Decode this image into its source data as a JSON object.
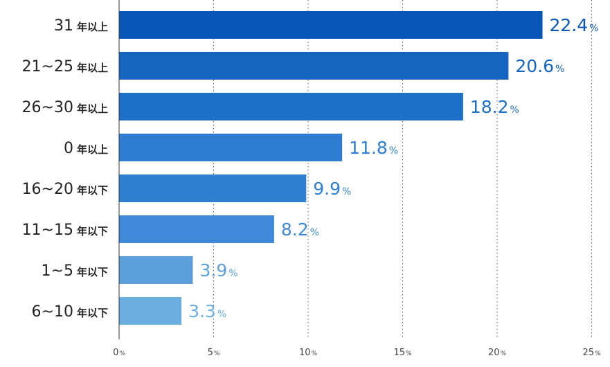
{
  "chart_data": {
    "type": "bar",
    "orientation": "horizontal",
    "categories": [
      {
        "num": "31",
        "suffix": "年以上"
      },
      {
        "num": "21~25",
        "suffix": "年以上"
      },
      {
        "num": "26~30",
        "suffix": "年以上"
      },
      {
        "num": "0",
        "suffix": "年以上"
      },
      {
        "num": "16~20",
        "suffix": "年以下"
      },
      {
        "num": "11~15",
        "suffix": "年以下"
      },
      {
        "num": "1~5",
        "suffix": "年以下"
      },
      {
        "num": "6~10",
        "suffix": "年以下"
      }
    ],
    "values": [
      22.4,
      20.6,
      18.2,
      11.8,
      9.9,
      8.2,
      3.9,
      3.3
    ],
    "value_labels": [
      "22.4",
      "20.6",
      "18.2",
      "11.8",
      "9.9",
      "8.2",
      "3.9",
      "3.3"
    ],
    "value_unit": "%",
    "xlim": [
      0,
      25
    ],
    "xticks": [
      0,
      5,
      10,
      15,
      20,
      25
    ],
    "xtick_labels": [
      "0",
      "5",
      "10",
      "15",
      "20",
      "25"
    ],
    "xtick_unit": "%",
    "grid": "vertical-dotted",
    "bar_colors": [
      "#0a56b8",
      "#1565c0",
      "#1e6fc8",
      "#2e7dd2",
      "#3080d2",
      "#3f8ad8",
      "#5b9fdc",
      "#6aaee0"
    ],
    "label_colors": [
      "#0a56b8",
      "#1565c0",
      "#1e6fc8",
      "#2e7dd2",
      "#3080d2",
      "#3f8ad8",
      "#5b9fdc",
      "#6aaee0"
    ]
  }
}
